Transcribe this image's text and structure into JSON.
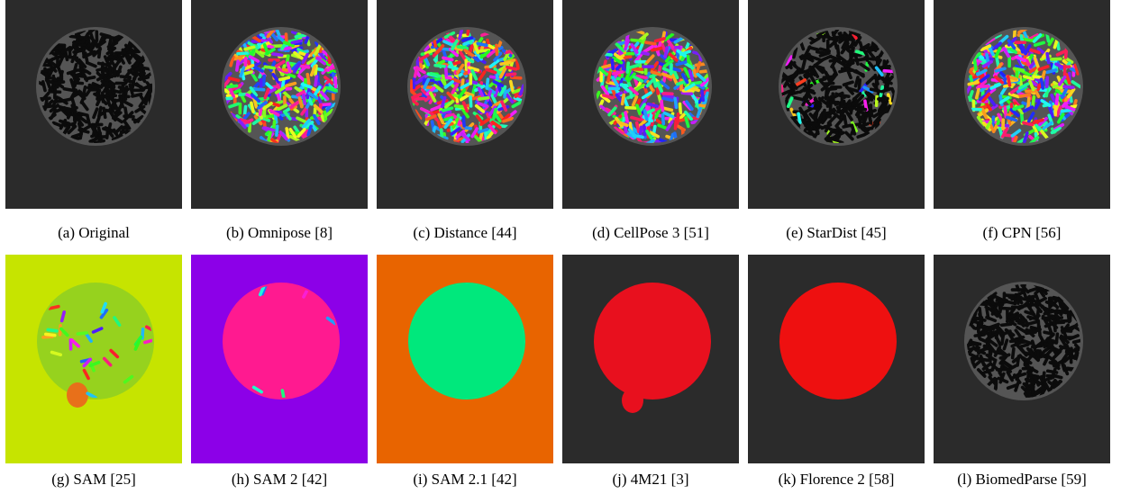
{
  "panels": [
    {
      "caption": "(a) Original"
    },
    {
      "caption": "(b) Omnipose [8]"
    },
    {
      "caption": "(c) Distance [44]"
    },
    {
      "caption": "(d) CellPose 3 [51]"
    },
    {
      "caption": "(e) StarDist [45]"
    },
    {
      "caption": "(f) CPN [56]"
    },
    {
      "caption": "(g) SAM [25]"
    },
    {
      "caption": "(h) SAM 2 [42]"
    },
    {
      "caption": "(i) SAM 2.1 [42]"
    },
    {
      "caption": "(j) 4M21 [3]"
    },
    {
      "caption": "(k) Florence 2 [58]"
    },
    {
      "caption": "(l) BiomedParse [59]"
    }
  ]
}
